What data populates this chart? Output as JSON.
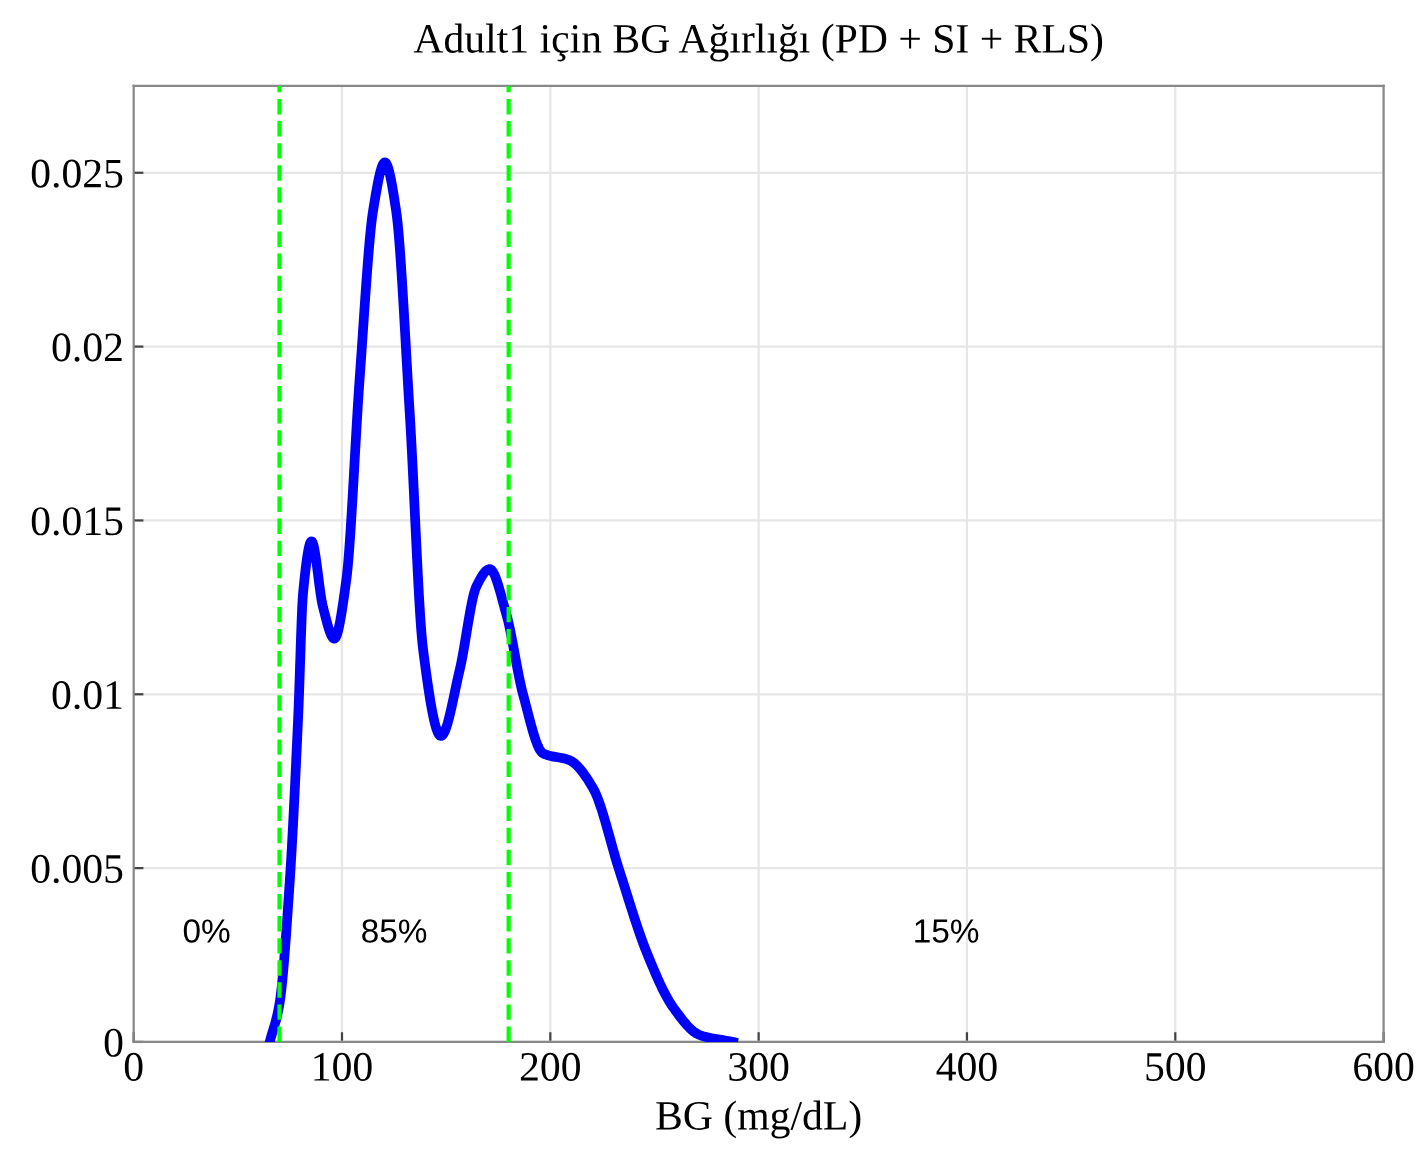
{
  "chart_data": {
    "type": "line",
    "title": "Adult1 için BG Ağırlığı (PD + SI + RLS)",
    "xlabel": "BG (mg/dL)",
    "series": [
      {
        "color": "#0000ff",
        "x": [
          65.3,
          70,
          74.9,
          79,
          81.3,
          85.4,
          90.9,
          96.3,
          102.1,
          108.5,
          114.9,
          120.6,
          126,
          132.5,
          138.9,
          147.5,
          156.5,
          164.5,
          170.9,
          178.9,
          186.9,
          196.5,
          209.3,
          220.5,
          233.3,
          246.1,
          258.9,
          271.7,
          287.7
        ],
        "values": [
          0,
          0.0011,
          0.0046,
          0.0094,
          0.0129,
          0.0144,
          0.0125,
          0.0116,
          0.0133,
          0.0191,
          0.0239,
          0.0253,
          0.0239,
          0.0181,
          0.0113,
          0.0088,
          0.0107,
          0.0131,
          0.0136,
          0.0123,
          0.01,
          0.0083,
          0.0081,
          0.0073,
          0.0049,
          0.0026,
          0.001,
          0.0002,
          0
        ]
      }
    ],
    "xlim": [
      0,
      600
    ],
    "ylim": [
      0,
      0.0275
    ],
    "xticks": [
      0,
      100,
      200,
      300,
      400,
      500,
      600
    ],
    "yticks": [
      0,
      0.005,
      0.01,
      0.015,
      0.02,
      0.025
    ],
    "grid": true,
    "line_style": "solid",
    "marker": "none",
    "ref_lines": [
      {
        "axis": "x",
        "value": 70,
        "color": "#00ff00",
        "line_style": "dashed"
      },
      {
        "axis": "x",
        "value": 180,
        "color": "#00ff00",
        "line_style": "dashed"
      }
    ],
    "annotations": [
      "0%",
      "85%",
      "15%"
    ]
  }
}
